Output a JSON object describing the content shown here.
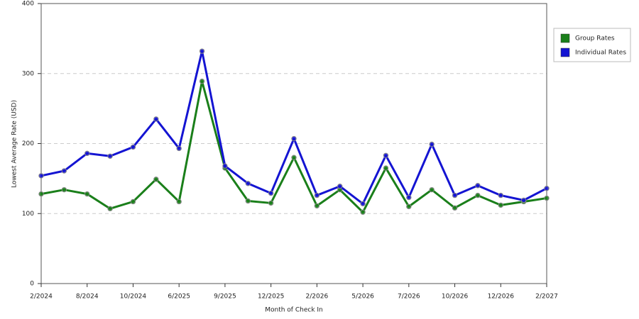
{
  "chart_data": {
    "type": "line",
    "x_label": "Month of Check In",
    "y_label": "Lowest Average Rate (USD)",
    "categories": [
      "2/2024",
      null,
      "8/2024",
      null,
      "10/2024",
      null,
      "6/2025",
      null,
      "9/2025",
      null,
      "12/2025",
      null,
      "2/2026",
      null,
      "5/2026",
      null,
      "7/2026",
      null,
      "10/2026",
      null,
      "12/2026",
      null,
      "2/2027"
    ],
    "series": [
      {
        "name": "Group Rates",
        "color": "#1a7f1a",
        "values": [
          128,
          134,
          128,
          107,
          117,
          149,
          117,
          289,
          165,
          118,
          115,
          180,
          111,
          134,
          102,
          165,
          110,
          134,
          108,
          126,
          112,
          117,
          122
        ]
      },
      {
        "name": "Individual Rates",
        "color": "#1414d2",
        "values": [
          154,
          161,
          186,
          182,
          195,
          235,
          193,
          332,
          168,
          143,
          129,
          207,
          126,
          139,
          114,
          183,
          123,
          199,
          126,
          140,
          126,
          119,
          136
        ]
      }
    ],
    "ylim": [
      0,
      400
    ],
    "yticks": [
      0,
      100,
      200,
      300,
      400
    ],
    "grid": true,
    "legend": "right"
  }
}
